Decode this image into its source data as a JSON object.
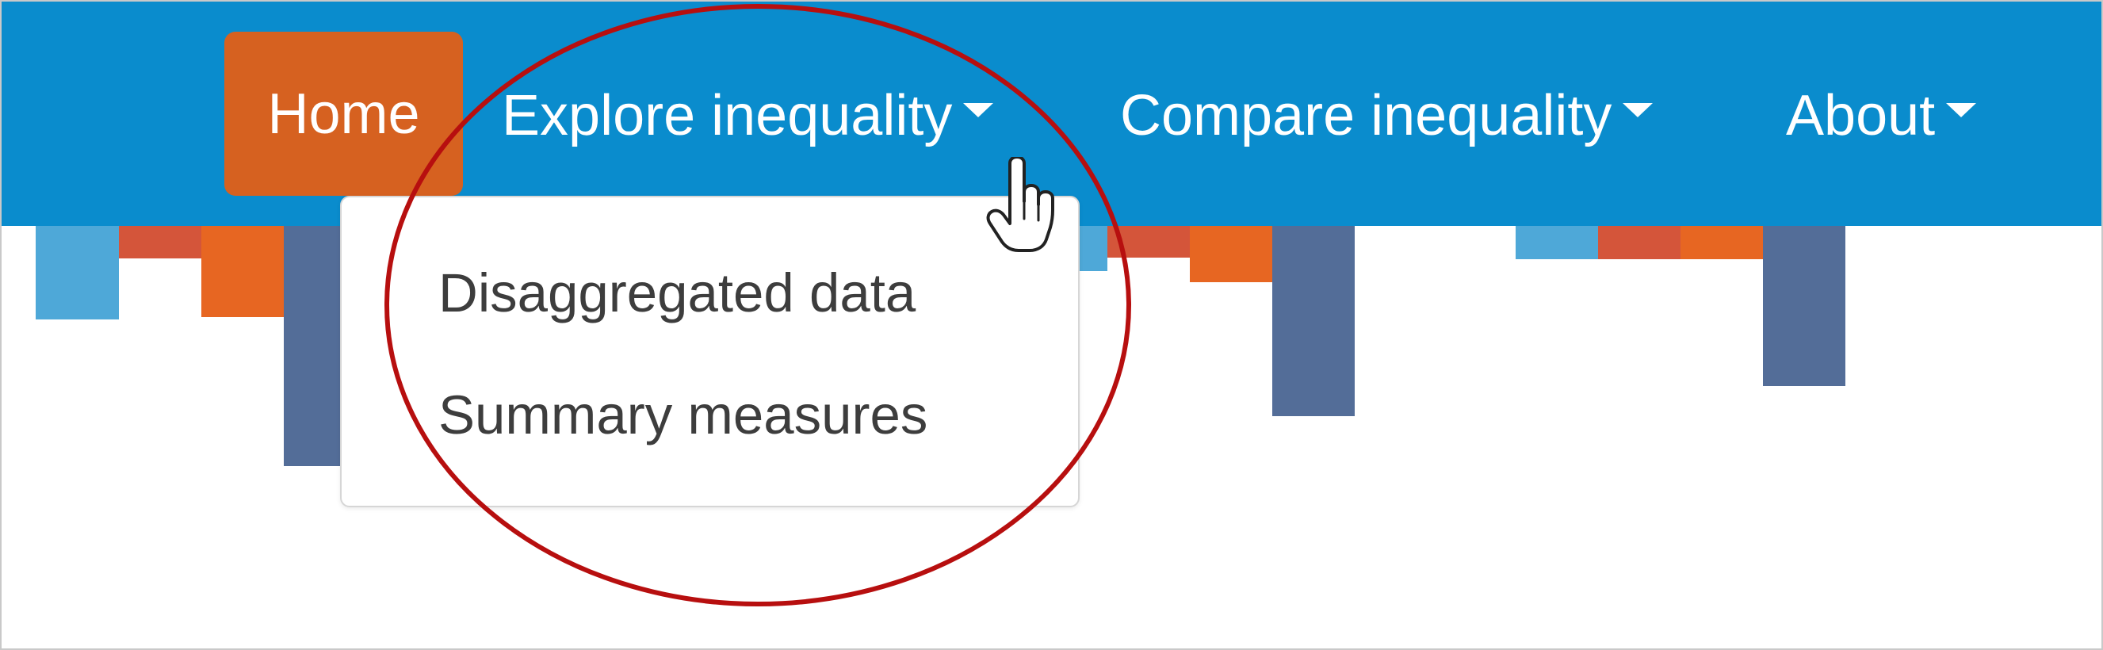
{
  "navbar": {
    "background": "#0a8ccd",
    "accent": "#d66120",
    "home_label": "Home",
    "items": [
      {
        "label": "Explore inequality",
        "icon": "chevron-down-icon"
      },
      {
        "label": "Compare inequality",
        "icon": "chevron-down-icon"
      },
      {
        "label": "About",
        "icon": "chevron-down-icon"
      }
    ]
  },
  "dropdown": {
    "items": [
      {
        "label": "Disaggregated data"
      },
      {
        "label": "Summary measures"
      }
    ]
  },
  "colors": {
    "light_blue": "#4ea8d8",
    "red": "#d4553a",
    "orange": "#e76622",
    "slate_blue": "#536d98",
    "annotation_red": "#b70f0f"
  },
  "cursor": {
    "icon": "hand-pointer-icon"
  },
  "annotation": {
    "shape": "ellipse"
  }
}
